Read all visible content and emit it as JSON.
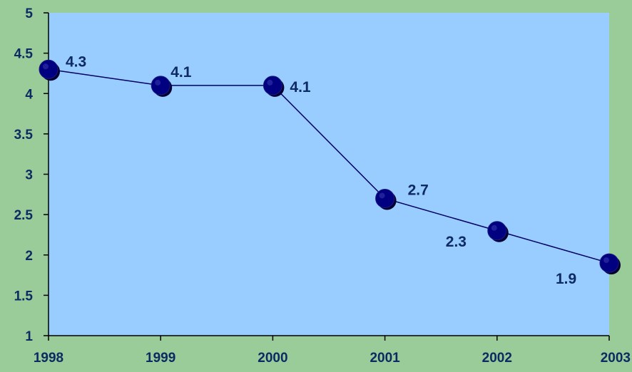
{
  "chart_data": {
    "type": "line",
    "categories": [
      "1998",
      "1999",
      "2000",
      "2001",
      "2002",
      "2003"
    ],
    "values": [
      4.3,
      4.1,
      4.1,
      2.7,
      2.3,
      1.9
    ],
    "data_labels": [
      "4.3",
      "4.1",
      "4.1",
      "2.7",
      "2.3",
      "1.9"
    ],
    "y_ticks": [
      "1",
      "1.5",
      "2",
      "2.5",
      "3",
      "3.5",
      "4",
      "4.5",
      "5"
    ],
    "ylim": [
      1,
      5
    ],
    "title": "",
    "xlabel": "",
    "ylabel": "",
    "grid": false,
    "legend": "none",
    "colors": {
      "background": "#99cc99",
      "plot_area": "#99ccff",
      "line": "#000066",
      "marker": "#000080",
      "marker_shadow": "#000033",
      "text": "#0d2a63",
      "axis": "#000000"
    }
  }
}
